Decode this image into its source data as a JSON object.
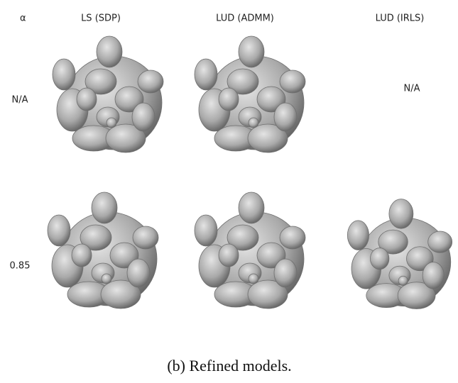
{
  "table": {
    "corner": "α",
    "columns": [
      "LS (SDP)",
      "LUD (ADMM)",
      "LUD (IRLS)"
    ],
    "rows": [
      {
        "label": "N/A",
        "missing": "N/A"
      },
      {
        "label": "0.85"
      }
    ]
  },
  "caption": "(b) Refined models."
}
